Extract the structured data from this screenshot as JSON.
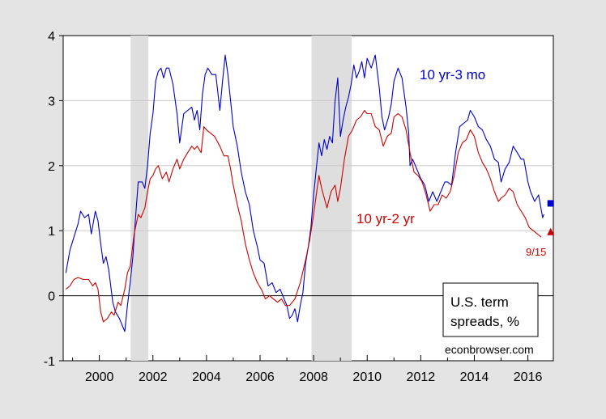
{
  "chart_data": {
    "type": "line",
    "title": "U.S. term spreads, %",
    "title_lines": [
      "U.S. term",
      "spreads, %"
    ],
    "source": "econbrowser.com",
    "xlim": [
      1998.65,
      2016.95
    ],
    "ylim": [
      -1,
      4
    ],
    "x_ticks": [
      2000,
      2002,
      2004,
      2006,
      2008,
      2010,
      2012,
      2014,
      2016
    ],
    "y_ticks": [
      -1,
      0,
      1,
      2,
      3,
      4
    ],
    "grid": "horizontal",
    "recessions": [
      [
        2001.17,
        2001.83
      ],
      [
        2007.92,
        2009.42
      ]
    ],
    "zero_line": true,
    "series": [
      {
        "name": "10 yr-3 mo",
        "color": "#0000cc",
        "points": [
          [
            1998.75,
            0.35
          ],
          [
            1998.9,
            0.7
          ],
          [
            1999.05,
            0.9
          ],
          [
            1999.2,
            1.1
          ],
          [
            1999.3,
            1.3
          ],
          [
            1999.45,
            1.2
          ],
          [
            1999.6,
            1.25
          ],
          [
            1999.7,
            0.95
          ],
          [
            1999.85,
            1.3
          ],
          [
            1999.95,
            1.15
          ],
          [
            2000.05,
            0.8
          ],
          [
            2000.15,
            0.5
          ],
          [
            2000.25,
            0.6
          ],
          [
            2000.35,
            0.4
          ],
          [
            2000.5,
            -0.1
          ],
          [
            2000.6,
            -0.25
          ],
          [
            2000.75,
            -0.35
          ],
          [
            2000.85,
            -0.45
          ],
          [
            2000.95,
            -0.55
          ],
          [
            2001.05,
            -0.15
          ],
          [
            2001.15,
            0.2
          ],
          [
            2001.25,
            0.6
          ],
          [
            2001.35,
            1.2
          ],
          [
            2001.45,
            1.75
          ],
          [
            2001.6,
            1.75
          ],
          [
            2001.7,
            1.65
          ],
          [
            2001.8,
            2.0
          ],
          [
            2001.9,
            2.5
          ],
          [
            2002.0,
            2.8
          ],
          [
            2002.1,
            3.3
          ],
          [
            2002.2,
            3.45
          ],
          [
            2002.3,
            3.5
          ],
          [
            2002.4,
            3.35
          ],
          [
            2002.5,
            3.5
          ],
          [
            2002.6,
            3.5
          ],
          [
            2002.75,
            3.25
          ],
          [
            2002.9,
            2.8
          ],
          [
            2003.0,
            2.35
          ],
          [
            2003.15,
            2.8
          ],
          [
            2003.3,
            2.85
          ],
          [
            2003.45,
            2.9
          ],
          [
            2003.55,
            2.7
          ],
          [
            2003.65,
            2.85
          ],
          [
            2003.75,
            2.55
          ],
          [
            2003.85,
            3.1
          ],
          [
            2003.95,
            3.4
          ],
          [
            2004.05,
            3.5
          ],
          [
            2004.2,
            3.4
          ],
          [
            2004.35,
            3.4
          ],
          [
            2004.5,
            2.85
          ],
          [
            2004.6,
            3.3
          ],
          [
            2004.7,
            3.7
          ],
          [
            2004.8,
            3.4
          ],
          [
            2004.9,
            3.0
          ],
          [
            2005.0,
            2.6
          ],
          [
            2005.15,
            2.3
          ],
          [
            2005.3,
            1.9
          ],
          [
            2005.45,
            1.6
          ],
          [
            2005.6,
            1.4
          ],
          [
            2005.75,
            1.0
          ],
          [
            2005.9,
            0.75
          ],
          [
            2006.0,
            0.55
          ],
          [
            2006.15,
            0.5
          ],
          [
            2006.3,
            0.15
          ],
          [
            2006.45,
            0.2
          ],
          [
            2006.6,
            0.05
          ],
          [
            2006.75,
            0.1
          ],
          [
            2006.9,
            -0.05
          ],
          [
            2007.0,
            -0.15
          ],
          [
            2007.1,
            -0.35
          ],
          [
            2007.2,
            -0.3
          ],
          [
            2007.3,
            -0.2
          ],
          [
            2007.4,
            -0.4
          ],
          [
            2007.5,
            -0.15
          ],
          [
            2007.6,
            0.05
          ],
          [
            2007.7,
            0.5
          ],
          [
            2007.8,
            0.75
          ],
          [
            2007.9,
            1.05
          ],
          [
            2008.0,
            1.55
          ],
          [
            2008.1,
            1.95
          ],
          [
            2008.2,
            2.35
          ],
          [
            2008.3,
            2.15
          ],
          [
            2008.4,
            2.4
          ],
          [
            2008.5,
            2.25
          ],
          [
            2008.6,
            2.45
          ],
          [
            2008.7,
            2.35
          ],
          [
            2008.8,
            3.0
          ],
          [
            2008.9,
            3.35
          ],
          [
            2009.0,
            2.45
          ],
          [
            2009.1,
            2.7
          ],
          [
            2009.2,
            2.9
          ],
          [
            2009.3,
            3.05
          ],
          [
            2009.4,
            3.25
          ],
          [
            2009.5,
            3.55
          ],
          [
            2009.6,
            3.35
          ],
          [
            2009.7,
            3.45
          ],
          [
            2009.8,
            3.6
          ],
          [
            2009.9,
            3.35
          ],
          [
            2010.0,
            3.65
          ],
          [
            2010.15,
            3.5
          ],
          [
            2010.3,
            3.7
          ],
          [
            2010.45,
            3.2
          ],
          [
            2010.55,
            2.75
          ],
          [
            2010.65,
            2.55
          ],
          [
            2010.8,
            2.75
          ],
          [
            2010.9,
            2.95
          ],
          [
            2011.0,
            3.3
          ],
          [
            2011.15,
            3.5
          ],
          [
            2011.3,
            3.35
          ],
          [
            2011.45,
            2.9
          ],
          [
            2011.55,
            2.5
          ],
          [
            2011.6,
            2.0
          ],
          [
            2011.7,
            2.1
          ],
          [
            2011.85,
            1.95
          ],
          [
            2012.0,
            1.8
          ],
          [
            2012.15,
            1.7
          ],
          [
            2012.3,
            1.45
          ],
          [
            2012.45,
            1.6
          ],
          [
            2012.6,
            1.45
          ],
          [
            2012.75,
            1.6
          ],
          [
            2012.9,
            1.75
          ],
          [
            2013.0,
            1.75
          ],
          [
            2013.15,
            1.7
          ],
          [
            2013.3,
            2.2
          ],
          [
            2013.45,
            2.6
          ],
          [
            2013.6,
            2.65
          ],
          [
            2013.75,
            2.7
          ],
          [
            2013.85,
            2.85
          ],
          [
            2014.0,
            2.75
          ],
          [
            2014.15,
            2.6
          ],
          [
            2014.3,
            2.55
          ],
          [
            2014.45,
            2.4
          ],
          [
            2014.6,
            2.3
          ],
          [
            2014.75,
            2.1
          ],
          [
            2014.9,
            2.05
          ],
          [
            2015.0,
            1.75
          ],
          [
            2015.15,
            1.95
          ],
          [
            2015.3,
            2.05
          ],
          [
            2015.45,
            2.3
          ],
          [
            2015.6,
            2.2
          ],
          [
            2015.75,
            2.1
          ],
          [
            2015.85,
            2.1
          ],
          [
            2016.0,
            1.75
          ],
          [
            2016.1,
            1.6
          ],
          [
            2016.25,
            1.45
          ],
          [
            2016.4,
            1.55
          ],
          [
            2016.55,
            1.2
          ],
          [
            2016.6,
            1.25
          ]
        ],
        "endpoint": [
          2016.85,
          1.42
        ],
        "endpoint_marker": "square"
      },
      {
        "name": "10 yr-2 yr",
        "color": "#cc0000",
        "points": [
          [
            1998.75,
            0.1
          ],
          [
            1998.9,
            0.15
          ],
          [
            1999.05,
            0.25
          ],
          [
            1999.2,
            0.28
          ],
          [
            1999.4,
            0.25
          ],
          [
            1999.6,
            0.25
          ],
          [
            1999.75,
            0.15
          ],
          [
            1999.85,
            0.2
          ],
          [
            1999.95,
            0.1
          ],
          [
            2000.05,
            -0.25
          ],
          [
            2000.15,
            -0.4
          ],
          [
            2000.3,
            -0.35
          ],
          [
            2000.45,
            -0.25
          ],
          [
            2000.55,
            -0.3
          ],
          [
            2000.7,
            -0.1
          ],
          [
            2000.8,
            -0.15
          ],
          [
            2000.95,
            0.1
          ],
          [
            2001.05,
            0.35
          ],
          [
            2001.15,
            0.45
          ],
          [
            2001.3,
            0.95
          ],
          [
            2001.45,
            1.25
          ],
          [
            2001.55,
            1.2
          ],
          [
            2001.7,
            1.35
          ],
          [
            2001.8,
            1.6
          ],
          [
            2001.9,
            1.8
          ],
          [
            2002.0,
            1.85
          ],
          [
            2002.1,
            1.95
          ],
          [
            2002.2,
            2.0
          ],
          [
            2002.35,
            1.8
          ],
          [
            2002.5,
            1.9
          ],
          [
            2002.6,
            1.75
          ],
          [
            2002.75,
            1.95
          ],
          [
            2002.9,
            2.1
          ],
          [
            2003.0,
            1.95
          ],
          [
            2003.15,
            2.1
          ],
          [
            2003.3,
            2.2
          ],
          [
            2003.45,
            2.3
          ],
          [
            2003.55,
            2.25
          ],
          [
            2003.65,
            2.3
          ],
          [
            2003.8,
            2.2
          ],
          [
            2003.9,
            2.6
          ],
          [
            2004.0,
            2.55
          ],
          [
            2004.15,
            2.5
          ],
          [
            2004.3,
            2.45
          ],
          [
            2004.5,
            2.3
          ],
          [
            2004.65,
            2.15
          ],
          [
            2004.8,
            2.15
          ],
          [
            2004.9,
            1.95
          ],
          [
            2005.0,
            1.7
          ],
          [
            2005.15,
            1.4
          ],
          [
            2005.3,
            1.15
          ],
          [
            2005.45,
            0.8
          ],
          [
            2005.6,
            0.55
          ],
          [
            2005.75,
            0.35
          ],
          [
            2005.9,
            0.2
          ],
          [
            2006.05,
            0.1
          ],
          [
            2006.2,
            -0.05
          ],
          [
            2006.35,
            0.0
          ],
          [
            2006.5,
            -0.05
          ],
          [
            2006.65,
            -0.1
          ],
          [
            2006.8,
            -0.05
          ],
          [
            2006.95,
            -0.15
          ],
          [
            2007.1,
            -0.15
          ],
          [
            2007.3,
            -0.05
          ],
          [
            2007.5,
            0.2
          ],
          [
            2007.7,
            0.55
          ],
          [
            2007.85,
            0.85
          ],
          [
            2008.0,
            1.25
          ],
          [
            2008.1,
            1.55
          ],
          [
            2008.2,
            1.85
          ],
          [
            2008.3,
            1.65
          ],
          [
            2008.4,
            1.5
          ],
          [
            2008.5,
            1.35
          ],
          [
            2008.65,
            1.6
          ],
          [
            2008.8,
            1.7
          ],
          [
            2008.9,
            1.45
          ],
          [
            2009.0,
            1.65
          ],
          [
            2009.15,
            2.1
          ],
          [
            2009.3,
            2.45
          ],
          [
            2009.45,
            2.55
          ],
          [
            2009.6,
            2.7
          ],
          [
            2009.75,
            2.75
          ],
          [
            2009.9,
            2.85
          ],
          [
            2010.0,
            2.8
          ],
          [
            2010.15,
            2.8
          ],
          [
            2010.3,
            2.6
          ],
          [
            2010.45,
            2.55
          ],
          [
            2010.6,
            2.3
          ],
          [
            2010.75,
            2.45
          ],
          [
            2010.9,
            2.5
          ],
          [
            2011.0,
            2.75
          ],
          [
            2011.15,
            2.8
          ],
          [
            2011.3,
            2.75
          ],
          [
            2011.45,
            2.55
          ],
          [
            2011.6,
            2.2
          ],
          [
            2011.75,
            1.9
          ],
          [
            2011.9,
            1.85
          ],
          [
            2012.05,
            1.75
          ],
          [
            2012.2,
            1.55
          ],
          [
            2012.35,
            1.3
          ],
          [
            2012.5,
            1.4
          ],
          [
            2012.65,
            1.4
          ],
          [
            2012.8,
            1.55
          ],
          [
            2012.95,
            1.5
          ],
          [
            2013.1,
            1.6
          ],
          [
            2013.25,
            1.85
          ],
          [
            2013.4,
            2.2
          ],
          [
            2013.55,
            2.35
          ],
          [
            2013.7,
            2.4
          ],
          [
            2013.85,
            2.55
          ],
          [
            2014.0,
            2.45
          ],
          [
            2014.15,
            2.2
          ],
          [
            2014.3,
            2.05
          ],
          [
            2014.45,
            1.95
          ],
          [
            2014.6,
            1.8
          ],
          [
            2014.75,
            1.6
          ],
          [
            2014.9,
            1.45
          ],
          [
            2015.0,
            1.5
          ],
          [
            2015.15,
            1.55
          ],
          [
            2015.3,
            1.65
          ],
          [
            2015.45,
            1.6
          ],
          [
            2015.6,
            1.4
          ],
          [
            2015.75,
            1.3
          ],
          [
            2015.9,
            1.2
          ],
          [
            2016.05,
            1.05
          ],
          [
            2016.2,
            1.0
          ],
          [
            2016.35,
            0.95
          ],
          [
            2016.5,
            0.9
          ]
        ],
        "endpoint": [
          2016.85,
          0.98
        ],
        "endpoint_marker": "triangle",
        "endpoint_label": "9/15"
      }
    ]
  }
}
